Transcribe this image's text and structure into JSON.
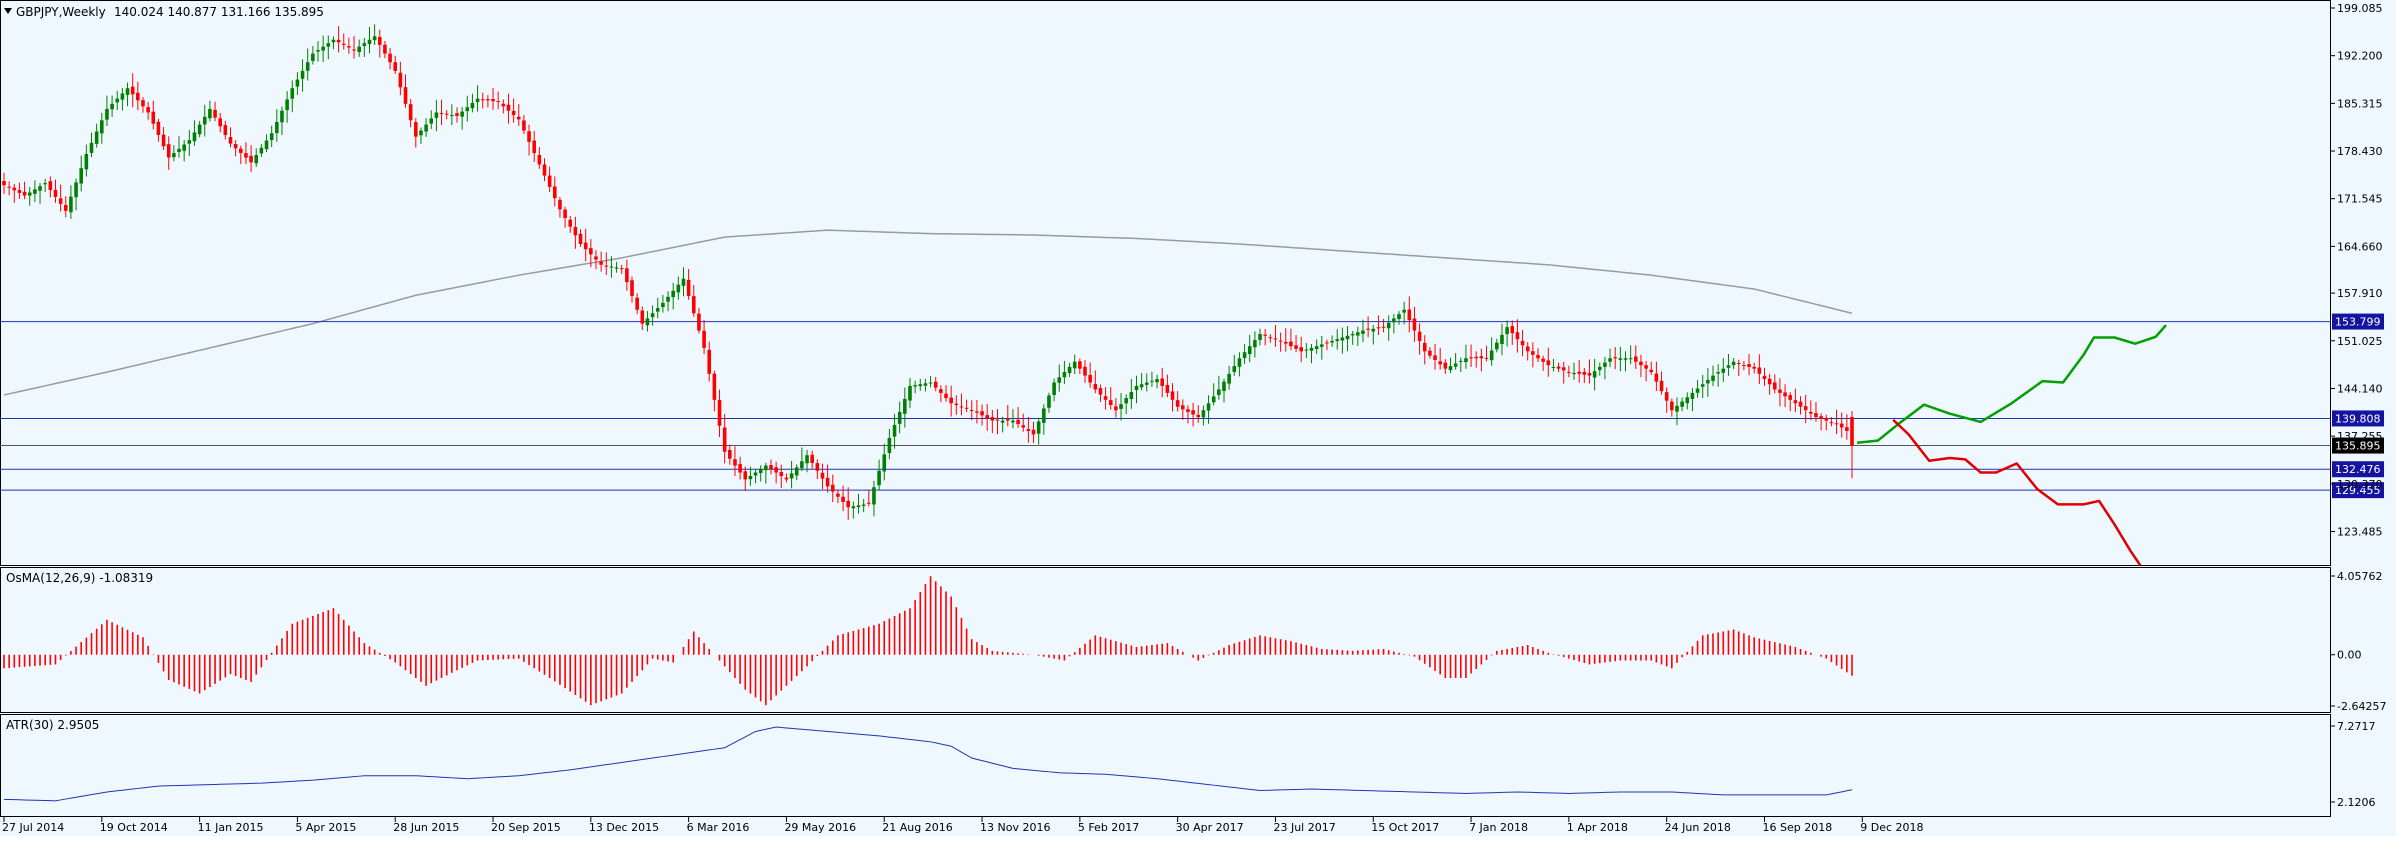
{
  "header": {
    "menu_icon": "triangle-down-icon",
    "symbol_info": "GBPJPY,Weekly",
    "ohlc": "140.024 140.877 131.166 135.895"
  },
  "colors": {
    "background": "#f0f8ff",
    "bull": "#008000",
    "bear": "#ff0000",
    "ma": "#9a9a9a",
    "hline": "#1e34b4",
    "atr": "#1e34b4",
    "up_projection": "#00a000",
    "down_projection": "#e00000",
    "label_bg": "#1414a0",
    "current_label_bg": "#000000"
  },
  "chart_data": [
    {
      "type": "candlestick",
      "ylim": [
        118.5,
        199.085
      ],
      "price_axis_ticks": [
        "199.085",
        "192.200",
        "185.315",
        "178.430",
        "171.545",
        "164.660",
        "157.910",
        "151.025",
        "144.140",
        "137.255",
        "130.370",
        "123.485"
      ],
      "time_labels": [
        "27 Jul 2014",
        "19 Oct 2014",
        "11 Jan 2015",
        "5 Apr 2015",
        "28 Jun 2015",
        "20 Sep 2015",
        "13 Dec 2015",
        "6 Mar 2016",
        "29 May 2016",
        "21 Aug 2016",
        "13 Nov 2016",
        "5 Feb 2017",
        "30 Apr 2017",
        "23 Jul 2017",
        "15 Oct 2017",
        "7 Jan 2018",
        "1 Apr 2018",
        "24 Jun 2018",
        "16 Sep 2018",
        "9 Dec 2018"
      ],
      "close_anchors": [
        [
          0,
          173.5
        ],
        [
          4,
          172.0
        ],
        [
          8,
          173.8
        ],
        [
          12,
          169.8
        ],
        [
          16,
          178.0
        ],
        [
          20,
          184.5
        ],
        [
          24,
          187.5
        ],
        [
          28,
          184.0
        ],
        [
          32,
          177.5
        ],
        [
          36,
          180.0
        ],
        [
          40,
          184.5
        ],
        [
          44,
          179.5
        ],
        [
          48,
          176.8
        ],
        [
          52,
          181.0
        ],
        [
          56,
          187.5
        ],
        [
          60,
          192.5
        ],
        [
          64,
          194.5
        ],
        [
          68,
          193.0
        ],
        [
          72,
          195.0
        ],
        [
          76,
          190.0
        ],
        [
          80,
          180.5
        ],
        [
          84,
          184.0
        ],
        [
          88,
          183.5
        ],
        [
          92,
          186.0
        ],
        [
          96,
          185.5
        ],
        [
          100,
          183.0
        ],
        [
          104,
          176.5
        ],
        [
          108,
          170.0
        ],
        [
          112,
          165.0
        ],
        [
          116,
          162.0
        ],
        [
          120,
          161.5
        ],
        [
          124,
          153.5
        ],
        [
          128,
          156.5
        ],
        [
          132,
          160.0
        ],
        [
          136,
          150.0
        ],
        [
          140,
          135.0
        ],
        [
          144,
          131.0
        ],
        [
          148,
          133.0
        ],
        [
          152,
          131.0
        ],
        [
          156,
          134.5
        ],
        [
          160,
          130.0
        ],
        [
          164,
          127.0
        ],
        [
          168,
          127.5
        ],
        [
          172,
          137.0
        ],
        [
          176,
          144.5
        ],
        [
          180,
          145.0
        ],
        [
          184,
          142.0
        ],
        [
          188,
          141.0
        ],
        [
          192,
          139.5
        ],
        [
          196,
          139.5
        ],
        [
          200,
          137.5
        ],
        [
          204,
          145.0
        ],
        [
          208,
          148.0
        ],
        [
          212,
          144.0
        ],
        [
          216,
          141.0
        ],
        [
          220,
          144.5
        ],
        [
          224,
          145.5
        ],
        [
          228,
          141.5
        ],
        [
          232,
          140.0
        ],
        [
          236,
          144.0
        ],
        [
          240,
          148.5
        ],
        [
          244,
          152.0
        ],
        [
          248,
          151.0
        ],
        [
          252,
          149.5
        ],
        [
          256,
          150.5
        ],
        [
          260,
          151.5
        ],
        [
          264,
          152.5
        ],
        [
          268,
          153.0
        ],
        [
          272,
          155.5
        ],
        [
          276,
          149.5
        ],
        [
          280,
          147.0
        ],
        [
          284,
          148.5
        ],
        [
          288,
          148.5
        ],
        [
          292,
          153.0
        ],
        [
          296,
          149.5
        ],
        [
          300,
          147.5
        ],
        [
          304,
          146.5
        ],
        [
          308,
          146.0
        ],
        [
          312,
          148.5
        ],
        [
          316,
          148.5
        ],
        [
          320,
          146.5
        ],
        [
          324,
          141.0
        ],
        [
          328,
          143.5
        ],
        [
          332,
          146.0
        ],
        [
          336,
          148.0
        ],
        [
          340,
          147.0
        ],
        [
          344,
          144.0
        ],
        [
          348,
          142.0
        ],
        [
          352,
          140.0
        ],
        [
          356,
          139.0
        ],
        [
          358,
          138.0
        ],
        [
          359,
          135.895
        ]
      ],
      "ma_line": [
        [
          0,
          143.2
        ],
        [
          20,
          146.5
        ],
        [
          40,
          150.0
        ],
        [
          60,
          153.5
        ],
        [
          80,
          157.6
        ],
        [
          100,
          160.5
        ],
        [
          120,
          163.0
        ],
        [
          140,
          166.0
        ],
        [
          160,
          167.0
        ],
        [
          180,
          166.5
        ],
        [
          200,
          166.3
        ],
        [
          220,
          165.8
        ],
        [
          240,
          165.0
        ],
        [
          260,
          164.0
        ],
        [
          280,
          163.0
        ],
        [
          300,
          162.0
        ],
        [
          320,
          160.5
        ],
        [
          340,
          158.5
        ],
        [
          359,
          155.0
        ]
      ],
      "horizontal_levels": [
        {
          "price": 153.799,
          "label": "153.799"
        },
        {
          "price": 139.808,
          "label": "139.808"
        },
        {
          "price": 132.476,
          "label": "132.476"
        },
        {
          "price": 129.455,
          "label": "129.455"
        }
      ],
      "current_price": {
        "price": 135.895,
        "label": "135.895"
      },
      "projection_up": [
        [
          360,
          136.3
        ],
        [
          364,
          136.6
        ],
        [
          368,
          139.0
        ],
        [
          373,
          141.8
        ],
        [
          378,
          140.5
        ],
        [
          384,
          139.3
        ],
        [
          390,
          142.0
        ],
        [
          396,
          145.2
        ],
        [
          400,
          145.0
        ],
        [
          404,
          149.0
        ],
        [
          406,
          151.5
        ],
        [
          410,
          151.5
        ],
        [
          414,
          150.6
        ],
        [
          418,
          151.6
        ],
        [
          420,
          153.3
        ]
      ],
      "projection_down": [
        [
          367,
          139.6
        ],
        [
          370,
          137.5
        ],
        [
          374,
          133.7
        ],
        [
          378,
          134.1
        ],
        [
          381,
          133.9
        ],
        [
          384,
          132.0
        ],
        [
          387,
          132.0
        ],
        [
          391,
          133.3
        ],
        [
          395,
          129.6
        ],
        [
          399,
          127.4
        ],
        [
          404,
          127.4
        ],
        [
          407,
          127.9
        ],
        [
          410,
          124.5
        ],
        [
          413,
          120.8
        ],
        [
          415,
          118.6
        ]
      ]
    },
    {
      "type": "bar",
      "title": "OsMA(12,26,9) -1.08319",
      "ylim": [
        -2.64257,
        4.05762
      ],
      "axis_ticks": [
        "4.05762",
        "0.00",
        "-2.64257"
      ],
      "value_anchors": [
        [
          0,
          -0.7
        ],
        [
          10,
          -0.5
        ],
        [
          20,
          1.8
        ],
        [
          27,
          0.9
        ],
        [
          32,
          -1.3
        ],
        [
          38,
          -2.0
        ],
        [
          44,
          -1.0
        ],
        [
          48,
          -1.4
        ],
        [
          56,
          1.6
        ],
        [
          64,
          2.4
        ],
        [
          70,
          0.6
        ],
        [
          76,
          -0.4
        ],
        [
          82,
          -1.6
        ],
        [
          88,
          -0.8
        ],
        [
          92,
          -0.3
        ],
        [
          100,
          -0.2
        ],
        [
          106,
          -1.2
        ],
        [
          114,
          -2.6
        ],
        [
          120,
          -2.0
        ],
        [
          126,
          -0.2
        ],
        [
          130,
          -0.4
        ],
        [
          134,
          1.2
        ],
        [
          138,
          0.0
        ],
        [
          144,
          -1.8
        ],
        [
          148,
          -2.6
        ],
        [
          156,
          -0.6
        ],
        [
          162,
          1.0
        ],
        [
          170,
          1.6
        ],
        [
          176,
          2.4
        ],
        [
          180,
          4.05
        ],
        [
          184,
          3.0
        ],
        [
          188,
          0.8
        ],
        [
          192,
          0.2
        ],
        [
          200,
          0.0
        ],
        [
          206,
          -0.3
        ],
        [
          212,
          1.0
        ],
        [
          220,
          0.4
        ],
        [
          226,
          0.6
        ],
        [
          232,
          -0.3
        ],
        [
          238,
          0.5
        ],
        [
          244,
          1.0
        ],
        [
          250,
          0.7
        ],
        [
          256,
          0.3
        ],
        [
          262,
          0.2
        ],
        [
          268,
          0.3
        ],
        [
          274,
          -0.1
        ],
        [
          280,
          -1.2
        ],
        [
          284,
          -1.2
        ],
        [
          290,
          0.2
        ],
        [
          296,
          0.5
        ],
        [
          300,
          0.1
        ],
        [
          308,
          -0.5
        ],
        [
          314,
          -0.3
        ],
        [
          320,
          -0.3
        ],
        [
          324,
          -0.7
        ],
        [
          330,
          1.0
        ],
        [
          336,
          1.3
        ],
        [
          340,
          0.9
        ],
        [
          348,
          0.4
        ],
        [
          354,
          -0.2
        ],
        [
          359,
          -1.08319
        ]
      ]
    },
    {
      "type": "line",
      "title": "ATR(30) 2.9505",
      "ylim": [
        2.1206,
        7.2717
      ],
      "axis_ticks": [
        "7.2717",
        "2.1206"
      ],
      "value_anchors": [
        [
          0,
          2.3
        ],
        [
          10,
          2.2
        ],
        [
          20,
          2.8
        ],
        [
          30,
          3.2
        ],
        [
          40,
          3.3
        ],
        [
          50,
          3.4
        ],
        [
          60,
          3.6
        ],
        [
          70,
          3.9
        ],
        [
          80,
          3.9
        ],
        [
          90,
          3.7
        ],
        [
          100,
          3.9
        ],
        [
          110,
          4.3
        ],
        [
          120,
          4.8
        ],
        [
          130,
          5.3
        ],
        [
          140,
          5.8
        ],
        [
          146,
          6.9
        ],
        [
          150,
          7.2
        ],
        [
          160,
          6.9
        ],
        [
          170,
          6.6
        ],
        [
          180,
          6.2
        ],
        [
          184,
          5.9
        ],
        [
          188,
          5.1
        ],
        [
          196,
          4.4
        ],
        [
          205,
          4.1
        ],
        [
          214,
          4.0
        ],
        [
          224,
          3.7
        ],
        [
          234,
          3.3
        ],
        [
          244,
          2.9
        ],
        [
          254,
          3.0
        ],
        [
          264,
          2.9
        ],
        [
          274,
          2.8
        ],
        [
          284,
          2.7
        ],
        [
          294,
          2.8
        ],
        [
          304,
          2.7
        ],
        [
          314,
          2.8
        ],
        [
          324,
          2.8
        ],
        [
          334,
          2.6
        ],
        [
          344,
          2.6
        ],
        [
          354,
          2.6
        ],
        [
          359,
          2.9505
        ]
      ]
    }
  ]
}
